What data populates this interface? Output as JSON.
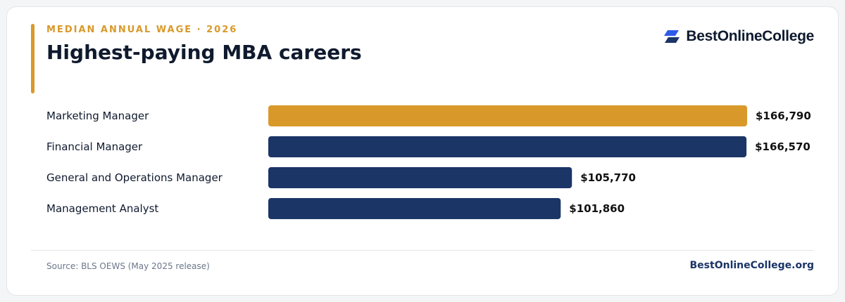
{
  "header": {
    "eyebrow": "MEDIAN ANNUAL WAGE · 2026",
    "title": "Highest-paying MBA careers"
  },
  "brand": {
    "name": "BestOnlineCollege",
    "icon": "brand-logo-icon",
    "icon_color": "#2f5bea"
  },
  "colors": {
    "accent": "#d9992a",
    "primary": "#1b3567",
    "text": "#0f1a2e"
  },
  "chart_data": {
    "type": "bar",
    "orientation": "horizontal",
    "categories": [
      "Marketing Manager",
      "Financial Manager",
      "General and Operations Manager",
      "Management Analyst"
    ],
    "values": [
      166790,
      166570,
      105770,
      101860
    ],
    "value_labels": [
      "$166,790",
      "$166,570",
      "$105,770",
      "$101,860"
    ],
    "bar_colors": [
      "#d9992a",
      "#1b3567",
      "#1b3567",
      "#1b3567"
    ],
    "xlim": [
      0,
      166790
    ],
    "grid": false,
    "legend": "none"
  },
  "footer": {
    "source": "Source: BLS OEWS (May 2025 release)",
    "site": "BestOnlineCollege.org"
  }
}
